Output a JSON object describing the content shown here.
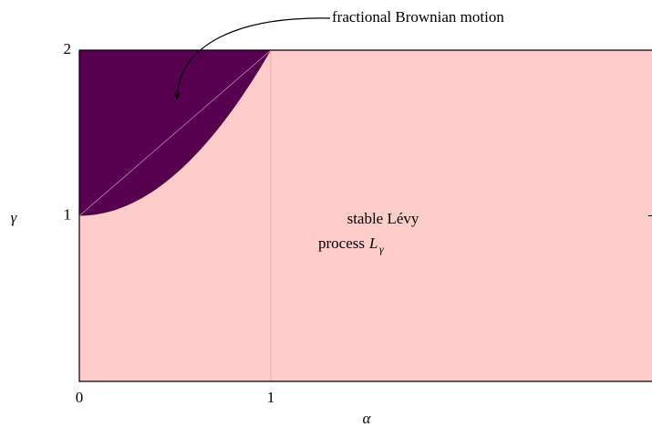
{
  "diagram": {
    "x_axis": {
      "label": "α",
      "lim": [
        0,
        2.99
      ],
      "ticks": [
        0,
        1
      ]
    },
    "y_axis": {
      "label": "γ",
      "lim": [
        0,
        2
      ],
      "ticks": [
        1,
        2
      ]
    },
    "annotation": "fractional Brownian motion",
    "region_label": {
      "line1": "stable Lévy",
      "line2": "process",
      "symbol": "L",
      "subscript": "γ"
    }
  }
}
